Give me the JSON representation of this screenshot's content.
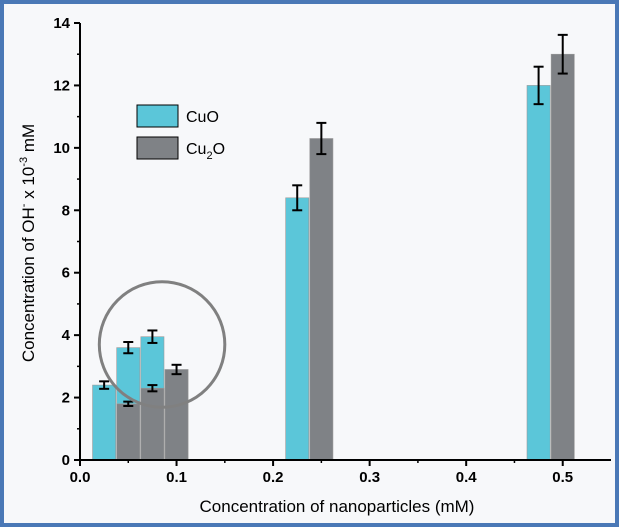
{
  "chart_data": {
    "type": "bar",
    "xlabel": "Concentration of nanoparticles (mM)",
    "ylabel": {
      "prefix": "Concentration of OH",
      "sup1": "-",
      "mid": " x 10",
      "sup2": "-3",
      "suffix": " mM"
    },
    "xlim": [
      0.0,
      0.55
    ],
    "ylim": [
      0,
      14
    ],
    "xticks": [
      "0.0",
      "0.1",
      "0.2",
      "0.3",
      "0.4",
      "0.5"
    ],
    "xtick_values": [
      0.0,
      0.1,
      0.2,
      0.3,
      0.4,
      0.5
    ],
    "yticks": [
      "0",
      "2",
      "4",
      "6",
      "8",
      "10",
      "12",
      "14"
    ],
    "ytick_values": [
      0,
      2,
      4,
      6,
      8,
      10,
      12,
      14
    ],
    "bar_width": 0.024,
    "series": [
      {
        "name": "CuO",
        "color": "#5bc6d9",
        "points": [
          {
            "x": 0.025,
            "y": 2.4,
            "err": 0.12
          },
          {
            "x": 0.05,
            "y": 3.6,
            "err": 0.18
          },
          {
            "x": 0.075,
            "y": 3.95,
            "err": 0.2
          },
          {
            "x": 0.225,
            "y": 8.4,
            "err": 0.4
          },
          {
            "x": 0.475,
            "y": 12.0,
            "err": 0.6
          }
        ]
      },
      {
        "name": "Cu2O",
        "legend_base": "Cu",
        "legend_sub": "2",
        "legend_tail": "O",
        "color": "#7f8286",
        "points": [
          {
            "x": 0.05,
            "y": 1.8,
            "err": 0.07
          },
          {
            "x": 0.075,
            "y": 2.3,
            "err": 0.1
          },
          {
            "x": 0.1,
            "y": 2.9,
            "err": 0.15
          },
          {
            "x": 0.25,
            "y": 10.3,
            "err": 0.5
          },
          {
            "x": 0.5,
            "y": 13.0,
            "err": 0.62
          }
        ]
      }
    ],
    "legend_position": "upper-left",
    "annotation": {
      "shape": "circle",
      "cx": 0.085,
      "cy": 3.7,
      "r_x": 0.065,
      "color": "#808080"
    },
    "grid": false
  }
}
